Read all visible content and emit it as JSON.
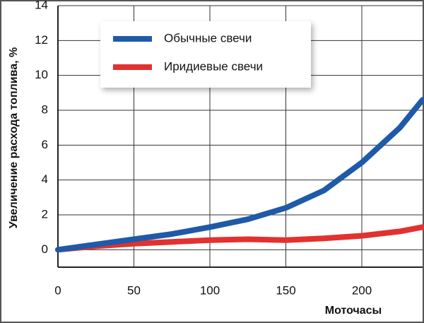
{
  "chart_data": {
    "type": "line",
    "y_label": "Увеличение расхода топлива, %",
    "x_label": "Моточасы",
    "x": [
      0,
      25,
      50,
      75,
      100,
      125,
      150,
      175,
      200,
      225,
      240
    ],
    "series": [
      {
        "name": "Обычные свечи",
        "color": "#1f5aa8",
        "values": [
          0,
          0.3,
          0.6,
          0.9,
          1.3,
          1.75,
          2.4,
          3.4,
          5.0,
          7.0,
          8.6
        ]
      },
      {
        "name": "Иридиевые свечи",
        "color": "#e2312f",
        "values": [
          0,
          0.2,
          0.35,
          0.45,
          0.55,
          0.6,
          0.55,
          0.65,
          0.8,
          1.05,
          1.3
        ]
      }
    ],
    "xlim": [
      0,
      240
    ],
    "xticks": [
      0,
      50,
      100,
      150,
      200
    ],
    "ylim": [
      -1,
      14
    ],
    "yticks": [
      0,
      2,
      4,
      6,
      8,
      10,
      12,
      14
    ],
    "grid": true
  }
}
